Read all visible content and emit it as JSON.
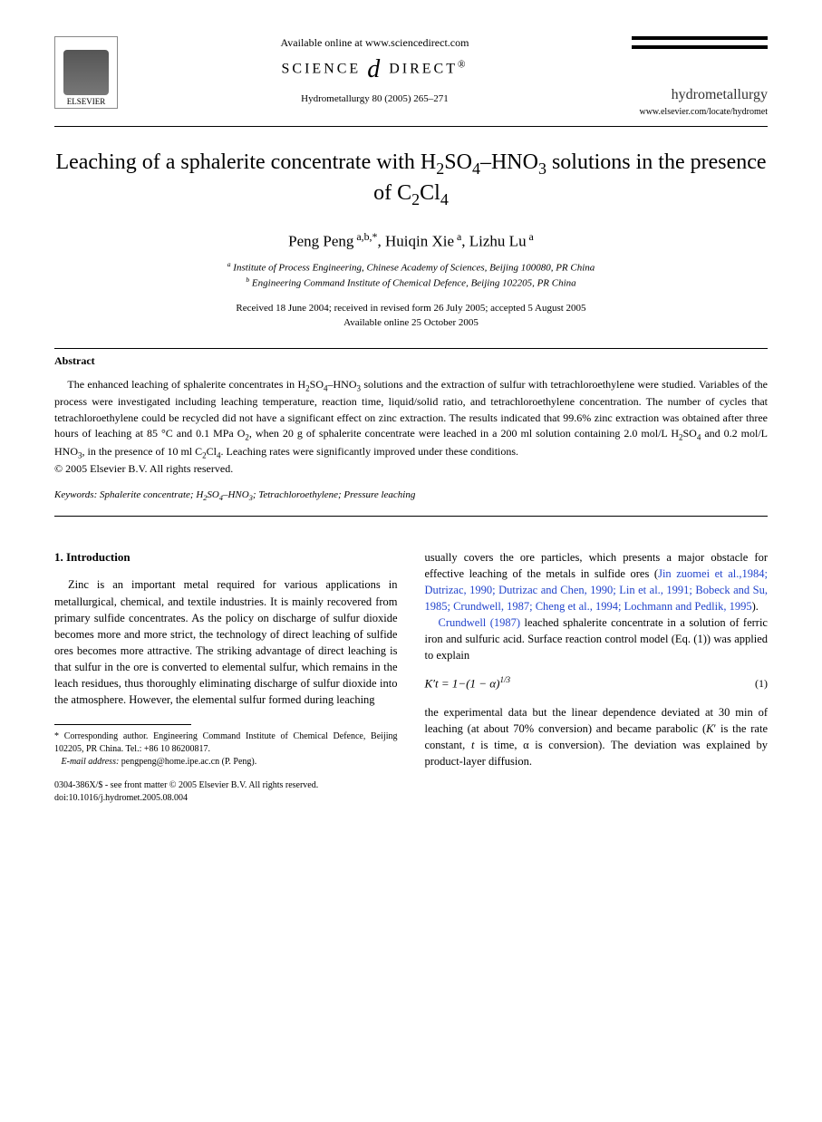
{
  "header": {
    "available_online": "Available online at www.sciencedirect.com",
    "science_direct": "SCIENCE DIRECT",
    "citation": "Hydrometallurgy 80 (2005) 265–271",
    "publisher_logo_label": "ELSEVIER",
    "journal_name": "hydrometallurgy",
    "journal_url": "www.elsevier.com/locate/hydromet"
  },
  "title": {
    "html": "Leaching of a sphalerite concentrate with H<sub>2</sub>SO<sub>4</sub>–HNO<sub>3</sub> solutions in the presence of C<sub>2</sub>Cl<sub>4</sub>"
  },
  "authors": {
    "list_html": "Peng Peng<sup> a,b,*</sup>, Huiqin Xie<sup> a</sup>, Lizhu Lu<sup> a</sup>"
  },
  "affiliations": {
    "a": "Institute of Process Engineering, Chinese Academy of Sciences, Beijing 100080, PR China",
    "b": "Engineering Command Institute of Chemical Defence, Beijing 102205, PR China"
  },
  "dates": {
    "received": "Received 18 June 2004; received in revised form 26 July 2005; accepted 5 August 2005",
    "online": "Available online 25 October 2005"
  },
  "abstract": {
    "heading": "Abstract",
    "text_html": "The enhanced leaching of sphalerite concentrates in H<sub>2</sub>SO<sub>4</sub>–HNO<sub>3</sub> solutions and the extraction of sulfur with tetrachloroethylene were studied. Variables of the process were investigated including leaching temperature, reaction time, liquid/solid ratio, and tetrachloroethylene concentration. The number of cycles that tetrachloroethylene could be recycled did not have a significant effect on zinc extraction. The results indicated that 99.6% zinc extraction was obtained after three hours of leaching at 85 °C and 0.1 MPa O<sub>2</sub>, when 20 g of sphalerite concentrate were leached in a 200 ml solution containing 2.0 mol/L H<sub>2</sub>SO<sub>4</sub> and 0.2 mol/L HNO<sub>3</sub>, in the presence of 10 ml C<sub>2</sub>Cl<sub>4</sub>. Leaching rates were significantly improved under these conditions.",
    "copyright": "© 2005 Elsevier B.V. All rights reserved."
  },
  "keywords": {
    "label": "Keywords:",
    "text_html": "Sphalerite concentrate; H<sub>2</sub>SO<sub>4</sub>–HNO<sub>3</sub>; Tetrachloroethylene; Pressure leaching"
  },
  "section1": {
    "heading": "1. Introduction",
    "col_left_html": "Zinc is an important metal required for various applications in metallurgical, chemical, and textile industries. It is mainly recovered from primary sulfide concentrates. As the policy on discharge of sulfur dioxide becomes more and more strict, the technology of direct leaching of sulfide ores becomes more attractive. The striking advantage of direct leaching is that sulfur in the ore is converted to elemental sulfur, which remains in the leach residues, thus thoroughly eliminating discharge of sulfur dioxide into the atmosphere. However, the elemental sulfur formed during leaching",
    "col_right_p1_html": "usually covers the ore particles, which presents a major obstacle for effective leaching of the metals in sulfide ores (<span class=\"ref-link\">Jin zuomei et al.,1984; Dutrizac, 1990; Dutrizac and Chen, 1990; Lin et al., 1991; Bobeck and Su, 1985; Crundwell, 1987; Cheng et al., 1994; Lochmann and Pedlik, 1995</span>).",
    "col_right_p2_html": "<span class=\"ref-link\">Crundwell (1987)</span> leached sphalerite concentrate in a solution of ferric iron and sulfuric acid. Surface reaction control model (Eq. (1)) was applied to explain",
    "equation": "K′t = 1−(1 − α)<sup>1/3</sup>",
    "equation_num": "(1)",
    "col_right_p3_html": "the experimental data but the linear dependence deviated at 30 min of leaching (at about 70% conversion) and became parabolic (<i>K</i>′ is the rate constant, <i>t</i> is time, α is conversion). The deviation was explained by product-layer diffusion."
  },
  "footnote": {
    "corr_label": "* Corresponding author.",
    "corr_text": "Engineering Command Institute of Chemical Defence, Beijing 102205, PR China. Tel.: +86 10 86200817.",
    "email_label": "E-mail address:",
    "email": "pengpeng@home.ipe.ac.cn (P. Peng)."
  },
  "footer": {
    "issn": "0304-386X/$ - see front matter © 2005 Elsevier B.V. All rights reserved.",
    "doi": "doi:10.1016/j.hydromet.2005.08.004"
  },
  "colors": {
    "text": "#000000",
    "link": "#2244cc",
    "background": "#ffffff"
  },
  "typography": {
    "title_fontsize_pt": 24,
    "author_fontsize_pt": 17,
    "body_fontsize_pt": 12.5,
    "abstract_fontsize_pt": 12,
    "footnote_fontsize_pt": 10,
    "font_family": "Times New Roman"
  }
}
